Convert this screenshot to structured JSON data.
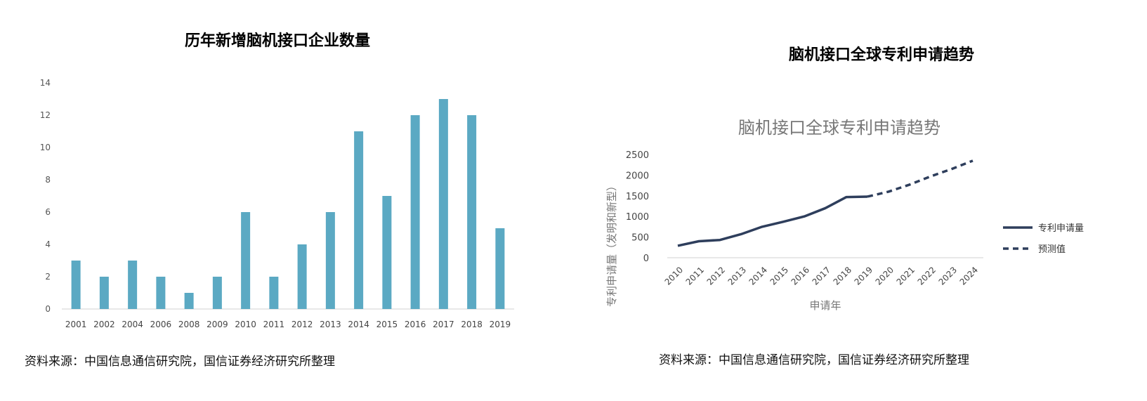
{
  "left": {
    "outer_title": "历年新增脑机接口企业数量",
    "source": "资料来源：中国信息通信研究院，国信证券经济研究所整理"
  },
  "right": {
    "outer_title": "脑机接口全球专利申请趋势",
    "source": "资料来源：中国信息通信研究院，国信证券经济研究所整理"
  },
  "chart_data": [
    {
      "type": "bar",
      "title": "历年新增脑机接口企业数量",
      "xlabel": "",
      "ylabel": "",
      "categories": [
        "2001",
        "2002",
        "2004",
        "2006",
        "2008",
        "2009",
        "2010",
        "2011",
        "2012",
        "2013",
        "2014",
        "2015",
        "2016",
        "2017",
        "2018",
        "2019"
      ],
      "values": [
        3,
        2,
        3,
        2,
        1,
        2,
        6,
        2,
        4,
        6,
        11,
        7,
        12,
        13,
        12,
        5
      ],
      "ylim": [
        0,
        14
      ],
      "yticks": [
        0,
        2,
        4,
        6,
        8,
        10,
        12,
        14
      ],
      "grid": false,
      "bar_color": "#5ba9c3"
    },
    {
      "type": "line",
      "title": "脑机接口全球专利申请趋势",
      "xlabel": "申请年",
      "ylabel": "专利申请量（发明和新型）",
      "x": [
        "2010",
        "2011",
        "2012",
        "2013",
        "2014",
        "2015",
        "2016",
        "2017",
        "2018",
        "2019",
        "2020",
        "2021",
        "2022",
        "2023",
        "2024"
      ],
      "ylim": [
        0,
        2500
      ],
      "yticks": [
        0,
        500,
        1000,
        1500,
        2000,
        2500
      ],
      "grid": false,
      "legend_position": "right",
      "series": [
        {
          "name": "专利申请量",
          "style": "solid",
          "color": "#2e3e5c",
          "x": [
            "2010",
            "2011",
            "2012",
            "2013",
            "2014",
            "2015",
            "2016",
            "2017",
            "2018",
            "2019"
          ],
          "values": [
            290,
            400,
            430,
            570,
            750,
            870,
            1000,
            1200,
            1470,
            1480
          ]
        },
        {
          "name": "预测值",
          "style": "dashed",
          "color": "#2e3e5c",
          "x": [
            "2019",
            "2020",
            "2021",
            "2022",
            "2023",
            "2024"
          ],
          "values": [
            1480,
            1600,
            1770,
            1970,
            2150,
            2350
          ]
        }
      ]
    }
  ]
}
